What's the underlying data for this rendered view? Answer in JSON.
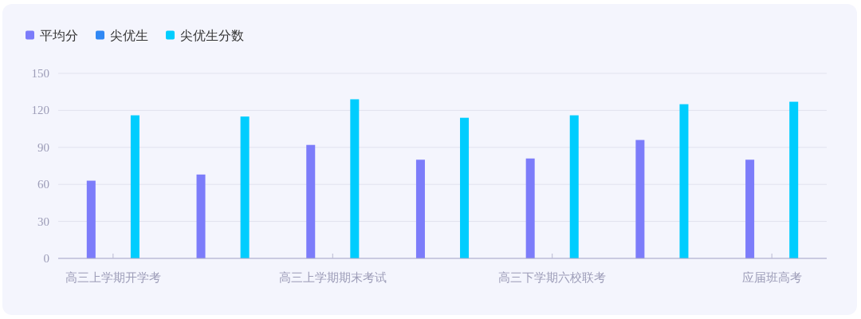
{
  "chart_data": {
    "type": "bar",
    "categories": [
      "高三上学期开学考",
      null,
      "高三上学期期末考试",
      null,
      "高三下学期六校联考",
      null,
      "应届班高考"
    ],
    "series": [
      {
        "name": "平均分",
        "color": "#7c7cfa",
        "values": [
          63,
          68,
          92,
          80,
          81,
          96,
          80
        ]
      },
      {
        "name": "尖优生",
        "color": "#3088f4",
        "values": [
          null,
          null,
          null,
          null,
          null,
          null,
          null
        ]
      },
      {
        "name": "尖优生分数",
        "color": "#00cdfe",
        "values": [
          116,
          115,
          129,
          114,
          116,
          125,
          127
        ]
      }
    ],
    "ylim": [
      0,
      150
    ],
    "yticks": [
      0,
      30,
      60,
      90,
      120,
      150
    ],
    "grid": "y",
    "legend": "top left"
  }
}
